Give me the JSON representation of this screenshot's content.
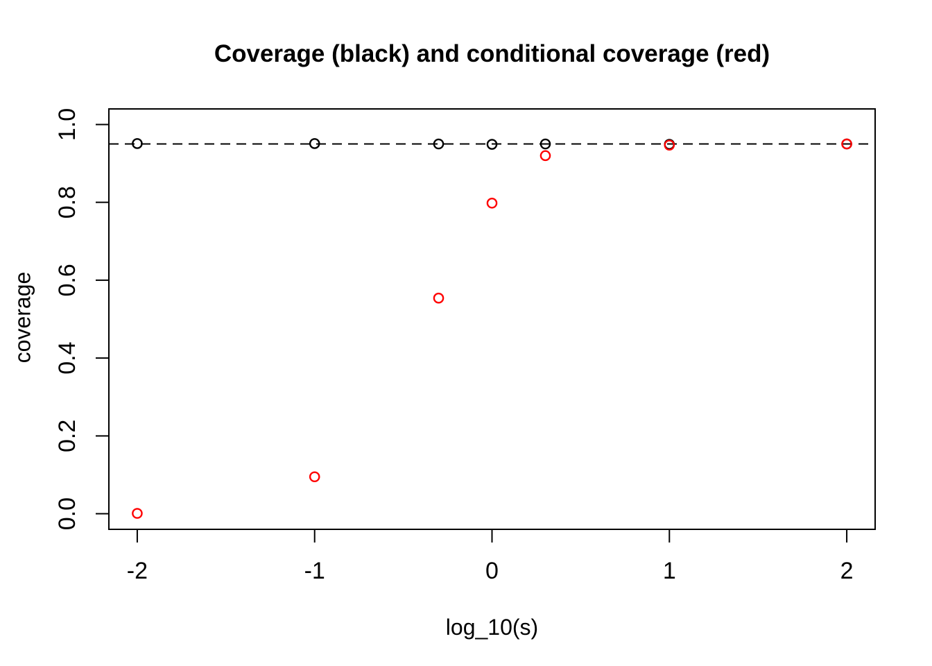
{
  "figure": {
    "background_color": "#ffffff",
    "foreground_color": "#000000",
    "accent_color": "#ff0000"
  },
  "chart_data": {
    "type": "scatter",
    "title": "Coverage (black) and conditional coverage (red)",
    "xlabel": "log_10(s)",
    "ylabel": "coverage",
    "xlim": [
      -2.16,
      2.16
    ],
    "ylim": [
      -0.04,
      1.04
    ],
    "x_ticks": [
      -2,
      -1,
      0,
      1,
      2
    ],
    "x_tick_labels": [
      "-2",
      "-1",
      "0",
      "1",
      "2"
    ],
    "y_ticks": [
      0.0,
      0.2,
      0.4,
      0.6,
      0.8,
      1.0
    ],
    "y_tick_labels": [
      "0.0",
      "0.2",
      "0.4",
      "0.6",
      "0.8",
      "1.0"
    ],
    "grid": false,
    "legend": "none (encoded in title: black = coverage, red = conditional coverage)",
    "reference_line": {
      "y": 0.95,
      "style": "dashed",
      "color": "#000000"
    },
    "marker": {
      "shape": "open-circle",
      "radius_px": 6.6,
      "stroke_px": 2.4
    },
    "series": [
      {
        "name": "coverage",
        "color": "#000000",
        "x": [
          -2,
          -1,
          -0.301,
          0,
          0.301,
          1,
          2
        ],
        "y": [
          0.951,
          0.951,
          0.95,
          0.949,
          0.95,
          0.949,
          0.95
        ]
      },
      {
        "name": "conditional coverage",
        "color": "#ff0000",
        "x": [
          -2,
          -1,
          -0.301,
          0,
          0.301,
          1,
          2
        ],
        "y": [
          0.001,
          0.095,
          0.554,
          0.798,
          0.92,
          0.947,
          0.95
        ]
      }
    ]
  }
}
